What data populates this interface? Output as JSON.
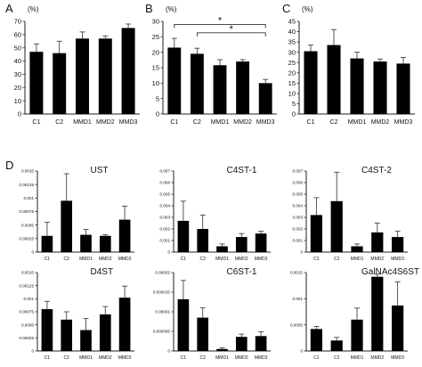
{
  "panel_labels": [
    "A",
    "B",
    "C",
    "D"
  ],
  "chart_data": [
    {
      "panel": "A",
      "type": "bar",
      "unit": "(%)",
      "categories": [
        "C1",
        "C2",
        "MMD1",
        "MMD2",
        "MMD3"
      ],
      "values": [
        47,
        46,
        57,
        57,
        65
      ],
      "errors": [
        6,
        9,
        5,
        2,
        3
      ],
      "ylim": [
        0,
        70
      ],
      "yticks": [
        "0",
        "10",
        "20",
        "30",
        "40",
        "50",
        "60",
        "70"
      ],
      "annotations": []
    },
    {
      "panel": "B",
      "type": "bar",
      "unit": "(%)",
      "categories": [
        "C1",
        "C2",
        "MMD1",
        "MMD2",
        "MMD3"
      ],
      "values": [
        21.5,
        19.5,
        15.8,
        17.0,
        10.0
      ],
      "errors": [
        3.0,
        1.8,
        1.8,
        0.6,
        1.2
      ],
      "ylim": [
        0,
        30
      ],
      "yticks": [
        "0",
        "5",
        "10",
        "15",
        "20",
        "25",
        "30"
      ],
      "annotations": [
        {
          "from": 0,
          "to": 4,
          "text": "*",
          "y": 29.0
        },
        {
          "from": 1,
          "to": 4,
          "text": "*",
          "y": 26.3
        }
      ]
    },
    {
      "panel": "C",
      "type": "bar",
      "unit": "(%)",
      "categories": [
        "C1",
        "C2",
        "MMD1",
        "MMD2",
        "MMD3"
      ],
      "values": [
        30.5,
        33.5,
        27.0,
        25.5,
        24.5
      ],
      "errors": [
        3.0,
        7.5,
        3.0,
        1.2,
        3.0
      ],
      "ylim": [
        0,
        45
      ],
      "yticks": [
        "0",
        "5",
        "10",
        "15",
        "20",
        "25",
        "30",
        "35",
        "40",
        "45"
      ],
      "annotations": []
    },
    {
      "panel": "D",
      "title": "UST",
      "type": "bar",
      "categories": [
        "C1",
        "C2",
        "MMD1",
        "MMD2",
        "MMD3"
      ],
      "values": [
        0.0003,
        0.00095,
        0.00032,
        0.0003,
        0.0006
      ],
      "errors": [
        0.00025,
        0.0005,
        0.0001,
        2e-05,
        0.00025
      ],
      "ylim": [
        0,
        0.0015
      ],
      "yticks": [
        "0",
        "0.00025",
        "0.0005",
        "0.00075",
        "0.001",
        "0.00125",
        "0.0015"
      ],
      "annotations": []
    },
    {
      "panel": "D",
      "title": "C4ST-1",
      "type": "bar",
      "categories": [
        "C1",
        "C2",
        "MMD1",
        "MMD2",
        "MMD3"
      ],
      "values": [
        0.0027,
        0.002,
        0.0005,
        0.0013,
        0.0016
      ],
      "errors": [
        0.0017,
        0.0012,
        0.0002,
        0.0003,
        0.0002
      ],
      "ylim": [
        0,
        0.007
      ],
      "yticks": [
        "0",
        "0.001",
        "0.002",
        "0.003",
        "0.004",
        "0.005",
        "0.006",
        "0.007"
      ],
      "annotations": []
    },
    {
      "panel": "D",
      "title": "C4ST-2",
      "type": "bar",
      "categories": [
        "C1",
        "C2",
        "MMD1",
        "MMD2",
        "MMD3"
      ],
      "values": [
        0.0032,
        0.0044,
        0.0005,
        0.0017,
        0.0013
      ],
      "errors": [
        0.0015,
        0.0025,
        0.0002,
        0.0008,
        0.0005
      ],
      "ylim": [
        0,
        0.007
      ],
      "yticks": [
        "0",
        "0.001",
        "0.002",
        "0.003",
        "0.004",
        "0.005",
        "0.006",
        "0.007"
      ],
      "annotations": []
    },
    {
      "panel": "D",
      "title": "D4ST",
      "type": "bar",
      "categories": [
        "C1",
        "C2",
        "MMD1",
        "MMD2",
        "MMD3"
      ],
      "values": [
        0.0008,
        0.0006,
        0.0004,
        0.0007,
        0.00102
      ],
      "errors": [
        0.00015,
        0.00015,
        0.00022,
        0.00015,
        0.00022
      ],
      "ylim": [
        0,
        0.0015
      ],
      "yticks": [
        "0",
        "0.00025",
        "0.0005",
        "0.00075",
        "0.001",
        "0.00125",
        "0.0015"
      ],
      "annotations": []
    },
    {
      "panel": "D",
      "title": "C6ST-1",
      "type": "bar",
      "categories": [
        "C1",
        "C2",
        "MMD1",
        "MMD2",
        "MMD3"
      ],
      "values": [
        1.32e-05,
        8.5e-06,
        5e-07,
        3.6e-06,
        3.8e-06
      ],
      "errors": [
        4.8e-06,
        2.5e-06,
        3e-07,
        7e-07,
        1.1e-06
      ],
      "ylim": [
        0,
        2e-05
      ],
      "yticks": [
        "0",
        "0.000005",
        "0.00001",
        "0.000015",
        "0.00002"
      ],
      "annotations": []
    },
    {
      "panel": "D",
      "title": "GalNAc4S6ST",
      "type": "bar",
      "categories": [
        "C1",
        "C2",
        "MMD1",
        "MMD2",
        "MMD3"
      ],
      "values": [
        0.00042,
        0.0002,
        0.0006,
        0.00142,
        0.00087
      ],
      "errors": [
        5e-05,
        6e-05,
        0.00022,
        5e-05,
        0.00045
      ],
      "ylim": [
        0,
        0.0015
      ],
      "yticks": [
        "0",
        "0.0005",
        "0.001",
        "0.0015"
      ],
      "annotations": []
    }
  ]
}
